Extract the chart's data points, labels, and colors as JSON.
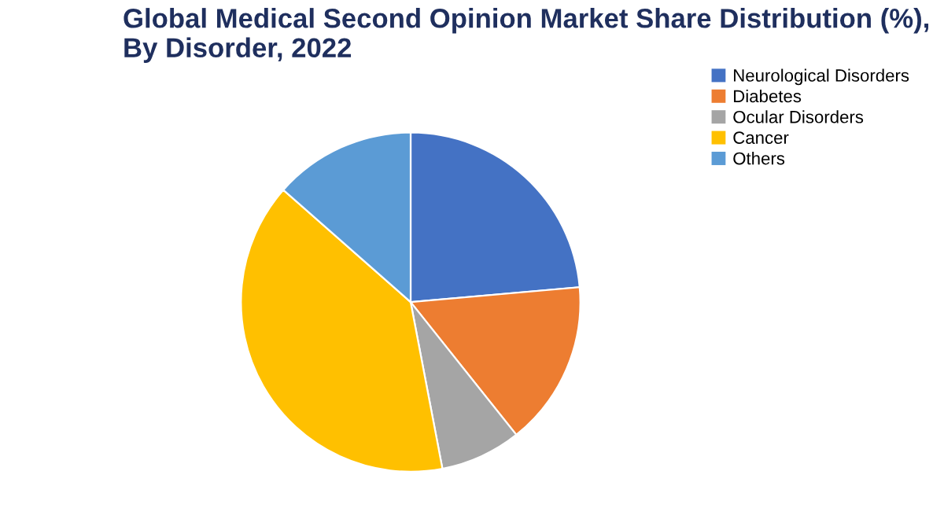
{
  "chart_data": {
    "type": "pie",
    "title": "Global Medical Second Opinion Market Share Distribution (%),\nBy Disorder, 2022",
    "categories": [
      "Neurological Disorders",
      "Diabetes",
      "Ocular Disorders",
      "Cancer",
      "Others"
    ],
    "values": [
      23.6,
      15.7,
      7.7,
      39.5,
      13.5
    ],
    "colors": [
      "#4472c4",
      "#ed7d31",
      "#a5a5a5",
      "#ffc000",
      "#5b9bd5"
    ],
    "legend": "top right"
  }
}
